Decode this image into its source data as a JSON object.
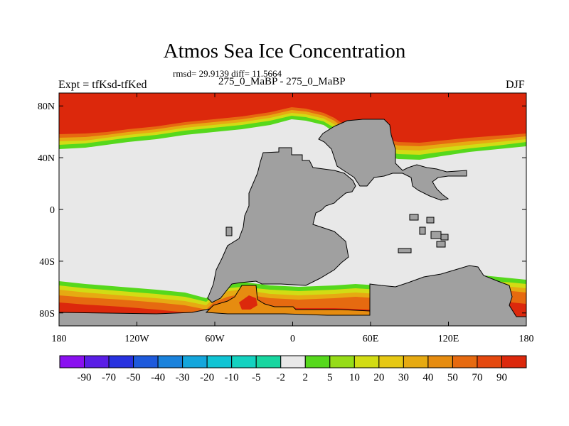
{
  "title": "Atmos Sea Ice Concentration",
  "stats": "rmsd= 29.9139 diff= 11.5664",
  "subtitle": "275_0_MaBP - 275_0_MaBP",
  "left_label": "Expt = tfKsd-tfKed",
  "right_label": "DJF",
  "lat_labels": [
    "80N",
    "40N",
    "0",
    "40S",
    "80S"
  ],
  "lon_labels": [
    "180",
    "120W",
    "60W",
    "0",
    "60E",
    "120E",
    "180"
  ],
  "colorbar": {
    "labels": [
      "-90",
      "-70",
      "-50",
      "-40",
      "-30",
      "-20",
      "-10",
      "-5",
      "-2",
      "2",
      "5",
      "10",
      "20",
      "30",
      "40",
      "50",
      "70",
      "90"
    ],
    "colors": [
      "#8a10f0",
      "#5a1ee6",
      "#2832e0",
      "#1e5adc",
      "#1a82dc",
      "#14a6dc",
      "#10c4d4",
      "#14d2c0",
      "#18d6a0",
      "#e8e8e8",
      "#56d81c",
      "#96dc18",
      "#d2dc14",
      "#e6c814",
      "#e6aa12",
      "#e68c10",
      "#e66a10",
      "#e4480e",
      "#dc280c"
    ]
  },
  "colors": {
    "land": "#a0a0a0",
    "no_change": "#e8e8e8"
  }
}
